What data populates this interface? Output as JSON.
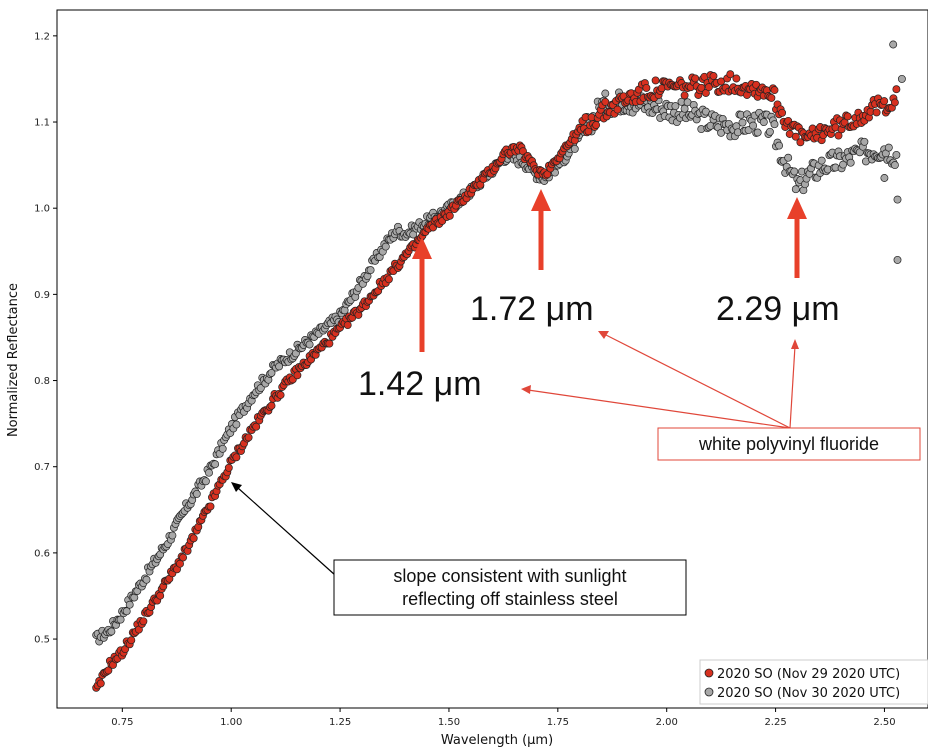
{
  "chart_data": {
    "type": "scatter",
    "title": "",
    "xlabel": "Wavelength (μm)",
    "ylabel": "Normalized Reflectance",
    "xlim": [
      0.6,
      2.6
    ],
    "ylim": [
      0.42,
      1.23
    ],
    "xticks": [
      "0.75",
      "1.00",
      "1.25",
      "1.50",
      "1.75",
      "2.00",
      "2.25",
      "2.50"
    ],
    "yticks": [
      "0.5",
      "0.6",
      "0.7",
      "0.8",
      "0.9",
      "1.0",
      "1.1",
      "1.2"
    ],
    "grid": false,
    "legend_position": "bottom-right",
    "series": [
      {
        "name": "2020 SO (Nov 29 2020 UTC)",
        "color": "#d7301f",
        "anchors": [
          [
            0.69,
            0.44
          ],
          [
            0.72,
            0.47
          ],
          [
            0.75,
            0.485
          ],
          [
            0.8,
            0.525
          ],
          [
            0.85,
            0.565
          ],
          [
            0.9,
            0.605
          ],
          [
            0.95,
            0.655
          ],
          [
            1.0,
            0.705
          ],
          [
            1.05,
            0.745
          ],
          [
            1.1,
            0.78
          ],
          [
            1.15,
            0.81
          ],
          [
            1.2,
            0.835
          ],
          [
            1.25,
            0.86
          ],
          [
            1.3,
            0.885
          ],
          [
            1.35,
            0.915
          ],
          [
            1.4,
            0.945
          ],
          [
            1.42,
            0.955
          ],
          [
            1.45,
            0.975
          ],
          [
            1.5,
            0.995
          ],
          [
            1.55,
            1.02
          ],
          [
            1.6,
            1.045
          ],
          [
            1.63,
            1.065
          ],
          [
            1.66,
            1.07
          ],
          [
            1.7,
            1.045
          ],
          [
            1.72,
            1.04
          ],
          [
            1.75,
            1.06
          ],
          [
            1.8,
            1.09
          ],
          [
            1.85,
            1.11
          ],
          [
            1.9,
            1.125
          ],
          [
            1.95,
            1.135
          ],
          [
            2.0,
            1.14
          ],
          [
            2.05,
            1.14
          ],
          [
            2.1,
            1.145
          ],
          [
            2.15,
            1.145
          ],
          [
            2.2,
            1.14
          ],
          [
            2.24,
            1.135
          ],
          [
            2.27,
            1.105
          ],
          [
            2.3,
            1.085
          ],
          [
            2.33,
            1.08
          ],
          [
            2.36,
            1.09
          ],
          [
            2.4,
            1.095
          ],
          [
            2.45,
            1.11
          ],
          [
            2.5,
            1.12
          ],
          [
            2.53,
            1.13
          ]
        ]
      },
      {
        "name": "2020 SO (Nov 30 2020 UTC)",
        "color": "#a8a8a8",
        "anchors": [
          [
            0.69,
            0.5
          ],
          [
            0.72,
            0.51
          ],
          [
            0.75,
            0.53
          ],
          [
            0.8,
            0.57
          ],
          [
            0.85,
            0.61
          ],
          [
            0.9,
            0.655
          ],
          [
            0.95,
            0.695
          ],
          [
            1.0,
            0.745
          ],
          [
            1.05,
            0.785
          ],
          [
            1.1,
            0.815
          ],
          [
            1.15,
            0.835
          ],
          [
            1.2,
            0.855
          ],
          [
            1.25,
            0.875
          ],
          [
            1.3,
            0.915
          ],
          [
            1.35,
            0.955
          ],
          [
            1.38,
            0.975
          ],
          [
            1.4,
            0.97
          ],
          [
            1.45,
            0.985
          ],
          [
            1.5,
            1.0
          ],
          [
            1.55,
            1.02
          ],
          [
            1.6,
            1.045
          ],
          [
            1.63,
            1.06
          ],
          [
            1.67,
            1.055
          ],
          [
            1.7,
            1.04
          ],
          [
            1.72,
            1.035
          ],
          [
            1.75,
            1.05
          ],
          [
            1.8,
            1.08
          ],
          [
            1.85,
            1.12
          ],
          [
            1.9,
            1.125
          ],
          [
            1.95,
            1.12
          ],
          [
            2.0,
            1.115
          ],
          [
            2.05,
            1.11
          ],
          [
            2.1,
            1.1
          ],
          [
            2.15,
            1.095
          ],
          [
            2.2,
            1.1
          ],
          [
            2.24,
            1.095
          ],
          [
            2.27,
            1.055
          ],
          [
            2.3,
            1.025
          ],
          [
            2.33,
            1.04
          ],
          [
            2.36,
            1.05
          ],
          [
            2.4,
            1.055
          ],
          [
            2.45,
            1.065
          ],
          [
            2.5,
            1.07
          ],
          [
            2.53,
            1.06
          ]
        ]
      }
    ],
    "outliers_gray": [
      [
        2.52,
        1.19
      ],
      [
        2.53,
        0.94
      ],
      [
        2.54,
        1.15
      ],
      [
        2.53,
        1.01
      ],
      [
        2.5,
        1.035
      ]
    ],
    "annotations": [
      {
        "text": "1.42 μm",
        "x": 1.42
      },
      {
        "text": "1.72 μm",
        "x": 1.72
      },
      {
        "text": "2.29 μm",
        "x": 2.29
      }
    ],
    "feature_label": "white polyvinyl fluoride",
    "slope_label_line1": "slope consistent with sunlight",
    "slope_label_line2": "reflecting off stainless steel",
    "colors": {
      "red_arrow": "#e8402a",
      "annotation_box_border": "#e0473a"
    }
  }
}
